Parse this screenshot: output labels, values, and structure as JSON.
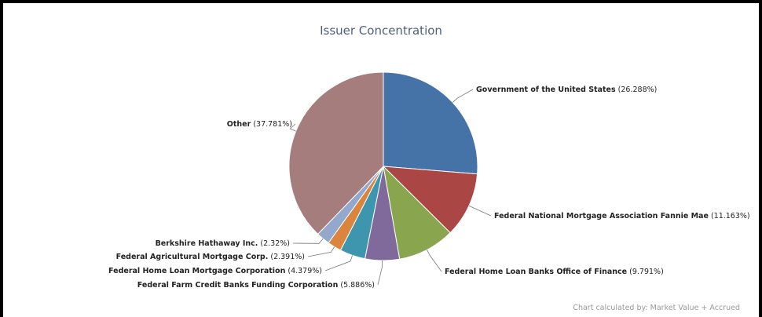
{
  "chart_data": {
    "type": "pie",
    "title": "Issuer Concentration",
    "slices": [
      {
        "label": "Government of the United States",
        "pct": "26.288%",
        "value": 26.288,
        "color": "#4572a7"
      },
      {
        "label": "Federal National Mortgage Association Fannie Mae",
        "pct": "11.163%",
        "value": 11.163,
        "color": "#aa4643"
      },
      {
        "label": "Federal Home Loan Banks Office of Finance",
        "pct": "9.791%",
        "value": 9.791,
        "color": "#89a54e"
      },
      {
        "label": "Federal Farm Credit Banks Funding Corporation",
        "pct": "5.886%",
        "value": 5.886,
        "color": "#80699b"
      },
      {
        "label": "Federal Home Loan Mortgage Corporation",
        "pct": "4.379%",
        "value": 4.379,
        "color": "#3d96ae"
      },
      {
        "label": "Federal Agricultural Mortgage Corp.",
        "pct": "2.391%",
        "value": 2.391,
        "color": "#db843d"
      },
      {
        "label": "Berkshire Hathaway Inc.",
        "pct": "2.32%",
        "value": 2.32,
        "color": "#92a8cd"
      },
      {
        "label": "Other",
        "pct": "37.781%",
        "value": 37.781,
        "color": "#a47d7c"
      }
    ]
  },
  "footer": {
    "note": "Chart calculated by: Market Value + Accrued"
  }
}
